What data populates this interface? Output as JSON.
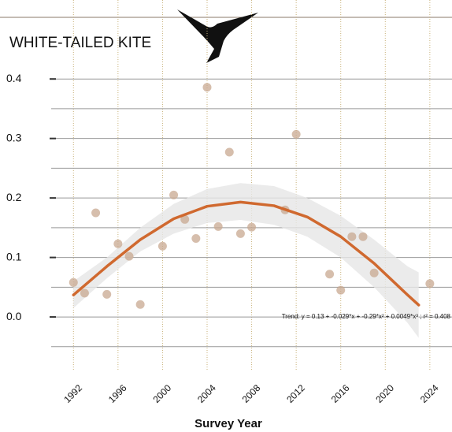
{
  "chart_data": {
    "type": "scatter",
    "title": "WHITE-TAILED KITE",
    "x_label": "Survey Year",
    "xlim": [
      1990,
      2025
    ],
    "xticks": [
      1992,
      1996,
      2000,
      2004,
      2008,
      2012,
      2016,
      2020,
      2024
    ],
    "ylim": [
      -0.09,
      0.44
    ],
    "yticks": [
      {
        "value": 0,
        "label": "0.0"
      },
      0.1,
      0.2,
      0.3,
      0.4
    ],
    "minor_yticks": [
      -0.05,
      0.05,
      0.15,
      0.25,
      0.35
    ],
    "grid": true,
    "series": [
      {
        "color": "#c8a890",
        "x": [
          1992,
          1993,
          1994,
          1995,
          1996,
          1997,
          1998,
          2000,
          2001,
          2002,
          2003,
          2004,
          2005,
          2006,
          2007,
          2008,
          2011,
          2012,
          2015,
          2016,
          2017,
          2018,
          2019,
          2024
        ],
        "values": [
          0.058,
          0.04,
          0.175,
          0.038,
          0.123,
          0.102,
          0.021,
          0.119,
          0.205,
          0.164,
          0.132,
          0.386,
          0.152,
          0.277,
          0.14,
          0.151,
          0.18,
          0.307,
          0.072,
          0.045,
          0.135,
          0.135,
          0.074,
          0.056
        ]
      }
    ],
    "trend": {
      "color": "#d0692f",
      "band_color": "#e6e6e6",
      "x": [
        1992,
        1995,
        1998,
        2001,
        2004,
        2007,
        2010,
        2013,
        2016,
        2019,
        2022,
        2023
      ],
      "values": [
        0.037,
        0.085,
        0.13,
        0.165,
        0.186,
        0.193,
        0.187,
        0.168,
        0.135,
        0.09,
        0.037,
        0.02
      ],
      "upper": [
        0.06,
        0.1,
        0.15,
        0.19,
        0.215,
        0.225,
        0.22,
        0.2,
        0.17,
        0.13,
        0.085,
        0.075
      ],
      "lower": [
        0.015,
        0.065,
        0.11,
        0.14,
        0.158,
        0.163,
        0.155,
        0.135,
        0.1,
        0.05,
        -0.01,
        -0.035
      ]
    },
    "annotation": "Trend: y = 0.13 + -0.029*x + -0.29*x² + 0.0049*x³ ; r² = 0.408"
  }
}
